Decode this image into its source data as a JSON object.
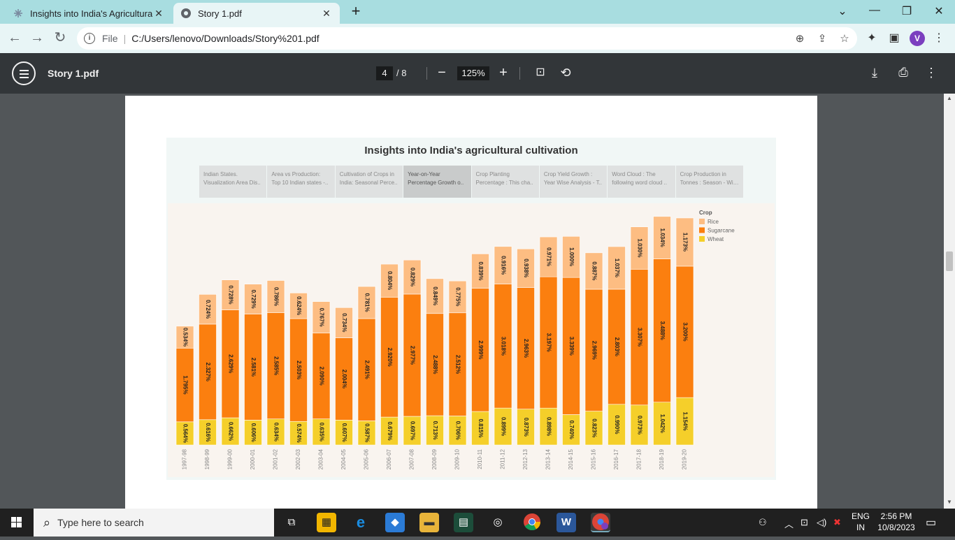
{
  "browser": {
    "tabs": [
      {
        "title": "Insights into India's Agricultural",
        "active": false,
        "icon": "tableau-icon"
      },
      {
        "title": "Story 1.pdf",
        "active": true,
        "icon": "globe-icon"
      }
    ],
    "address": {
      "scheme_label": "File",
      "url": "C:/Users/lenovo/Downloads/Story%201.pdf"
    },
    "profile_initial": "V"
  },
  "pdf_toolbar": {
    "title": "Story 1.pdf",
    "current_page": "4",
    "total_pages": "/ 8",
    "zoom": "125%"
  },
  "dashboard": {
    "title": "Insights into India's agricultural cultivation",
    "story_tabs": [
      {
        "line1": "Indian States.",
        "line2": "Visualization Area Dis..",
        "selected": false
      },
      {
        "line1": "Area vs Production:",
        "line2": "Top 10 Indian states -..",
        "selected": false
      },
      {
        "line1": "Cultivation of Crops in",
        "line2": "India: Seasonal Perce..",
        "selected": false
      },
      {
        "line1": "Year-on-Year",
        "line2": "Percentage Growth o..",
        "selected": true
      },
      {
        "line1": "Crop Planting",
        "line2": "Percentage : This cha..",
        "selected": false
      },
      {
        "line1": "Crop Yield Growth :",
        "line2": "Year Wise Analysis - T..",
        "selected": false
      },
      {
        "line1": "Word Cloud : The",
        "line2": "following word cloud ..",
        "selected": false
      },
      {
        "line1": "Crop Production in",
        "line2": "Tonnes : Season - Wis..",
        "selected": false
      }
    ]
  },
  "chart_data": {
    "type": "bar",
    "stacked": true,
    "categories": [
      "1997-98",
      "1998-99",
      "1999-00",
      "2000-01",
      "2001-02",
      "2002-03",
      "2003-04",
      "2004-05",
      "2005-06",
      "2006-07",
      "2007-08",
      "2008-09",
      "2009-10",
      "2010-11",
      "2011-12",
      "2012-13",
      "2013-14",
      "2014-15",
      "2015-16",
      "2016-17",
      "2017-18",
      "2018-19",
      "2019-20"
    ],
    "series": [
      {
        "name": "Wheat",
        "color": "#f5cf2a",
        "labels": [
          "0.564%",
          "0.616%",
          "0.662%",
          "0.606%",
          "0.634%",
          "0.574%",
          "0.635%",
          "0.607%",
          "0.587%",
          "0.679%",
          "0.697%",
          "0.713%",
          "0.706%",
          "0.815%",
          "0.899%",
          "0.873%",
          "0.898%",
          "0.740%",
          "0.823%",
          "0.990%",
          "0.973%",
          "1.042%",
          "1.154%"
        ],
        "values": [
          0.564,
          0.616,
          0.662,
          0.606,
          0.634,
          0.574,
          0.635,
          0.607,
          0.587,
          0.679,
          0.697,
          0.713,
          0.706,
          0.815,
          0.899,
          0.873,
          0.898,
          0.74,
          0.823,
          0.99,
          0.973,
          1.042,
          1.154
        ]
      },
      {
        "name": "Sugarcane",
        "color": "#fb7f0f",
        "labels": [
          "1.795%",
          "2.327%",
          "2.629%",
          "2.581%",
          "2.585%",
          "2.503%",
          "2.090%",
          "2.004%",
          "2.491%",
          "2.920%",
          "2.977%",
          "2.488%",
          "2.512%",
          "2.999%",
          "3.018%",
          "2.963%",
          "3.197%",
          "3.339%",
          "2.969%",
          "2.803%",
          "3.307%",
          "3.488%",
          "3.200%"
        ],
        "values": [
          1.795,
          2.327,
          2.629,
          2.581,
          2.585,
          2.503,
          2.09,
          2.004,
          2.491,
          2.92,
          2.977,
          2.488,
          2.512,
          2.999,
          3.018,
          2.963,
          3.197,
          3.339,
          2.969,
          2.803,
          3.307,
          3.488,
          3.2
        ]
      },
      {
        "name": "Rice",
        "color": "#fdbd82",
        "labels": [
          "0.534%",
          "0.724%",
          "0.728%",
          "0.729%",
          "0.786%",
          "0.624%",
          "0.767%",
          "0.734%",
          "0.781%",
          "0.804%",
          "0.829%",
          "0.849%",
          "0.775%",
          "0.839%",
          "0.916%",
          "0.938%",
          "0.971%",
          "1.000%",
          "0.887%",
          "1.037%",
          "1.030%",
          "1.034%",
          "1.173%"
        ],
        "values": [
          0.534,
          0.724,
          0.728,
          0.729,
          0.786,
          0.624,
          0.767,
          0.734,
          0.781,
          0.804,
          0.829,
          0.849,
          0.775,
          0.839,
          0.916,
          0.938,
          0.971,
          1.0,
          0.887,
          1.037,
          1.03,
          1.034,
          1.173
        ]
      }
    ],
    "legend": {
      "title": "Crop",
      "position": "top-right",
      "entries": [
        "Rice",
        "Sugarcane",
        "Wheat"
      ]
    },
    "grid": false
  },
  "taskbar": {
    "search_placeholder": "Type here to search",
    "lang_line1": "ENG",
    "lang_line2": "IN",
    "time": "2:56 PM",
    "date": "10/8/2023"
  }
}
